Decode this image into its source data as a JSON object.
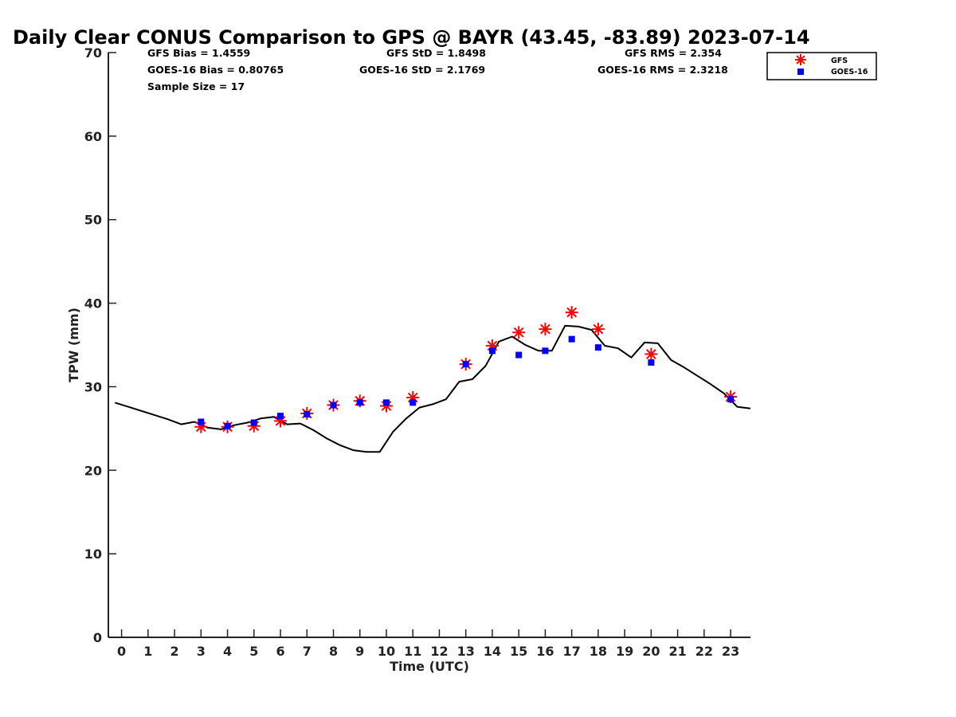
{
  "chart_data": {
    "type": "line",
    "title": "Daily Clear CONUS Comparison to GPS @ BAYR (43.45, -83.89) 2023-07-14",
    "xlabel": "Time (UTC)",
    "ylabel": "TPW (mm)",
    "xlim": [
      -0.5,
      23.75
    ],
    "ylim": [
      0,
      70
    ],
    "xticks": [
      0,
      1,
      2,
      3,
      4,
      5,
      6,
      7,
      8,
      9,
      10,
      11,
      12,
      13,
      14,
      15,
      16,
      17,
      18,
      19,
      20,
      21,
      22,
      23
    ],
    "yticks": [
      0,
      10,
      20,
      30,
      40,
      50,
      60,
      70
    ],
    "grid": false,
    "legend_position": "top-right",
    "stats": {
      "gfs_bias": "GFS Bias = 1.4559",
      "goes_bias": "GOES-16 Bias = 0.80765",
      "sample_size": "Sample Size = 17",
      "gfs_std": "GFS StD = 1.8498",
      "goes_std": "GOES-16 StD = 2.1769",
      "gfs_rms": "GFS RMS = 2.354",
      "goes_rms": "GOES-16 RMS = 2.3218"
    },
    "series": [
      {
        "name": "GPS",
        "style": "line",
        "color": "#000000",
        "x": [
          -0.25,
          0.25,
          0.75,
          1.25,
          1.75,
          2.25,
          2.75,
          3.25,
          3.75,
          4.25,
          4.75,
          5.25,
          5.75,
          6.25,
          6.75,
          7.25,
          7.75,
          8.25,
          8.75,
          9.25,
          9.75,
          10.25,
          10.75,
          11.25,
          11.75,
          12.25,
          12.75,
          13.25,
          13.75,
          14.25,
          14.75,
          15.25,
          15.75,
          16.25,
          16.75,
          17.25,
          17.75,
          18.25,
          18.75,
          19.25,
          19.75,
          20.25,
          20.75,
          21.25,
          21.75,
          22.25,
          22.75,
          23.25,
          23.75
        ],
        "y": [
          28.1,
          27.6,
          27.1,
          26.6,
          26.1,
          25.5,
          25.8,
          25.1,
          24.9,
          25.4,
          25.7,
          26.2,
          26.4,
          25.5,
          25.6,
          24.8,
          23.8,
          23.0,
          22.4,
          22.2,
          22.2,
          24.6,
          26.2,
          27.5,
          27.9,
          28.5,
          30.6,
          30.9,
          32.5,
          35.4,
          36.0,
          35.0,
          34.3,
          34.3,
          37.3,
          37.2,
          36.8,
          34.9,
          34.6,
          33.5,
          35.3,
          35.2,
          33.2,
          32.3,
          31.3,
          30.3,
          29.2,
          27.6,
          27.4
        ]
      },
      {
        "name": "GFS",
        "style": "star",
        "color": "#ff0000",
        "x": [
          3,
          4,
          5,
          6,
          7,
          8,
          9,
          10,
          11,
          13,
          14,
          15,
          16,
          17,
          18,
          20,
          23
        ],
        "y": [
          25.2,
          25.2,
          25.3,
          25.9,
          26.8,
          27.8,
          28.3,
          27.7,
          28.7,
          32.7,
          34.9,
          36.5,
          36.9,
          38.9,
          36.9,
          33.9,
          28.8
        ]
      },
      {
        "name": "GOES-16",
        "style": "square",
        "color": "#0000ff",
        "x": [
          3,
          4,
          5,
          6,
          7,
          8,
          9,
          10,
          11,
          13,
          14,
          15,
          16,
          17,
          18,
          20,
          23
        ],
        "y": [
          25.8,
          25.3,
          25.7,
          26.5,
          26.7,
          27.8,
          28.1,
          28.1,
          28.1,
          32.7,
          34.3,
          33.8,
          34.3,
          35.7,
          34.7,
          32.9,
          28.5
        ]
      }
    ],
    "legend": [
      {
        "label": "GFS",
        "marker": "star",
        "color": "#ff0000"
      },
      {
        "label": "GOES-16",
        "marker": "square",
        "color": "#0000ff"
      }
    ]
  }
}
